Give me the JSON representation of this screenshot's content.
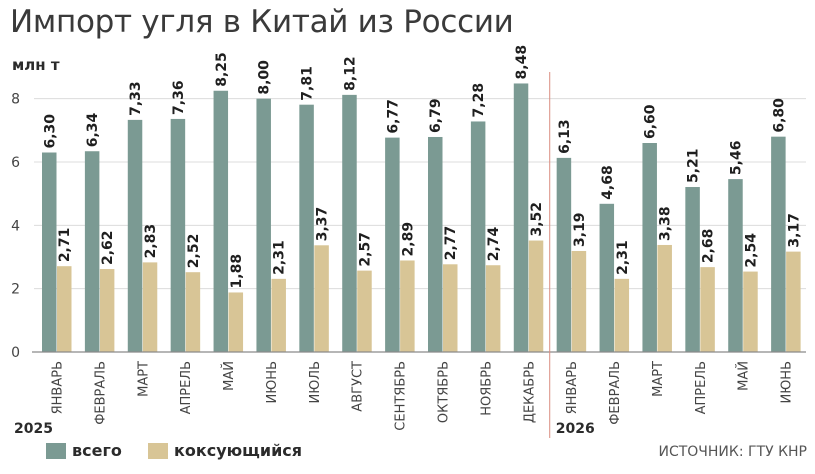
{
  "chart_data": {
    "type": "bar",
    "title": "Импорт угля в Китай из России",
    "ylabel": "млн т",
    "xlabel": "",
    "ylim": [
      0,
      9
    ],
    "yticks": [
      0,
      2,
      4,
      6,
      8
    ],
    "grid": true,
    "categories": [
      "ЯНВАРЬ",
      "ФЕВРАЛЬ",
      "МАРТ",
      "АПРЕЛЬ",
      "МАЙ",
      "ИЮНЬ",
      "ИЮЛЬ",
      "АВГУСТ",
      "СЕНТЯБРЬ",
      "ОКТЯБРЬ",
      "НОЯБРЬ",
      "ДЕКАБРЬ",
      "ЯНВАРЬ",
      "ФЕВРАЛЬ",
      "МАРТ",
      "АПРЕЛЬ",
      "МАЙ",
      "ИЮНЬ"
    ],
    "year_groups": [
      {
        "label": "2025",
        "count": 12
      },
      {
        "label": "2026",
        "count": 6
      }
    ],
    "series": [
      {
        "name": "всего",
        "color": "#7b9a93",
        "values": [
          6.3,
          6.34,
          7.33,
          7.36,
          8.25,
          8.0,
          7.81,
          8.12,
          6.77,
          6.79,
          7.28,
          8.48,
          6.13,
          4.68,
          6.6,
          5.21,
          5.46,
          6.8
        ],
        "labels": [
          "6,30",
          "6,34",
          "7,33",
          "7,36",
          "8,25",
          "8,00",
          "7,81",
          "8,12",
          "6,77",
          "6,79",
          "7,28",
          "8,48",
          "6,13",
          "4,68",
          "6,60",
          "5,21",
          "5,46",
          "6,80"
        ]
      },
      {
        "name": "коксующийся",
        "color": "#d8c596",
        "values": [
          2.71,
          2.62,
          2.83,
          2.52,
          1.88,
          2.31,
          3.37,
          2.57,
          2.89,
          2.77,
          2.74,
          3.52,
          3.19,
          2.31,
          3.38,
          2.68,
          2.54,
          3.17
        ],
        "labels": [
          "2,71",
          "2,62",
          "2,83",
          "2,52",
          "1,88",
          "2,31",
          "3,37",
          "2,57",
          "2,89",
          "2,77",
          "2,74",
          "3,52",
          "3,19",
          "2,31",
          "3,38",
          "2,68",
          "2,54",
          "3,17"
        ]
      }
    ],
    "legend_position": "bottom-left",
    "source": "ИСТОЧНИК: ГТУ КНР"
  }
}
